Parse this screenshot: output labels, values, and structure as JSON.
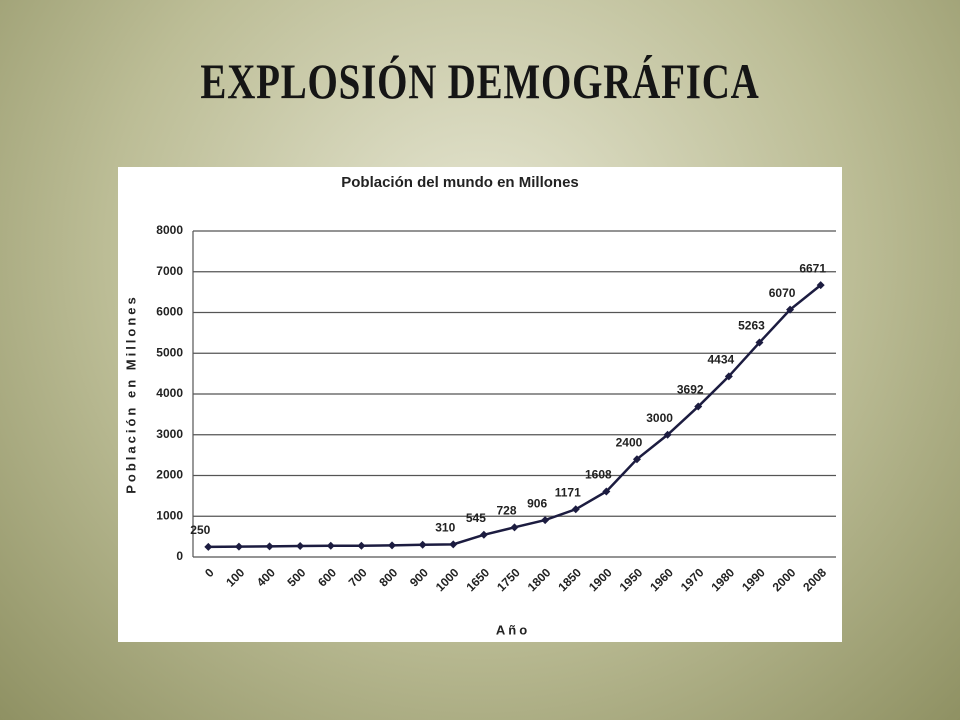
{
  "slide_title": "EXPLOSIÓN DEMOGRÁFICA",
  "chart_data": {
    "type": "line",
    "title": "Población del mundo en Millones",
    "x_label": "Año",
    "y_label": "Población en Millones",
    "categories": [
      "0",
      "100",
      "400",
      "500",
      "600",
      "700",
      "800",
      "900",
      "1000",
      "1650",
      "1750",
      "1800",
      "1850",
      "1900",
      "1950",
      "1960",
      "1970",
      "1980",
      "1990",
      "2000",
      "2008"
    ],
    "values": [
      250,
      255,
      260,
      270,
      275,
      275,
      285,
      300,
      310,
      545,
      728,
      906,
      1171,
      1608,
      2400,
      3000,
      3692,
      4434,
      5263,
      6070,
      6671
    ],
    "value_labels": [
      "250",
      null,
      null,
      null,
      null,
      null,
      null,
      null,
      "310",
      "545",
      "728",
      "906",
      "1171",
      "1608",
      "2400",
      "3000",
      "3692",
      "4434",
      "5263",
      "6070",
      "6671"
    ],
    "color": "#1c1c40",
    "ylim": [
      0,
      8000
    ],
    "yticks": [
      0,
      1000,
      2000,
      3000,
      4000,
      5000,
      6000,
      7000,
      8000
    ],
    "grid": true
  }
}
